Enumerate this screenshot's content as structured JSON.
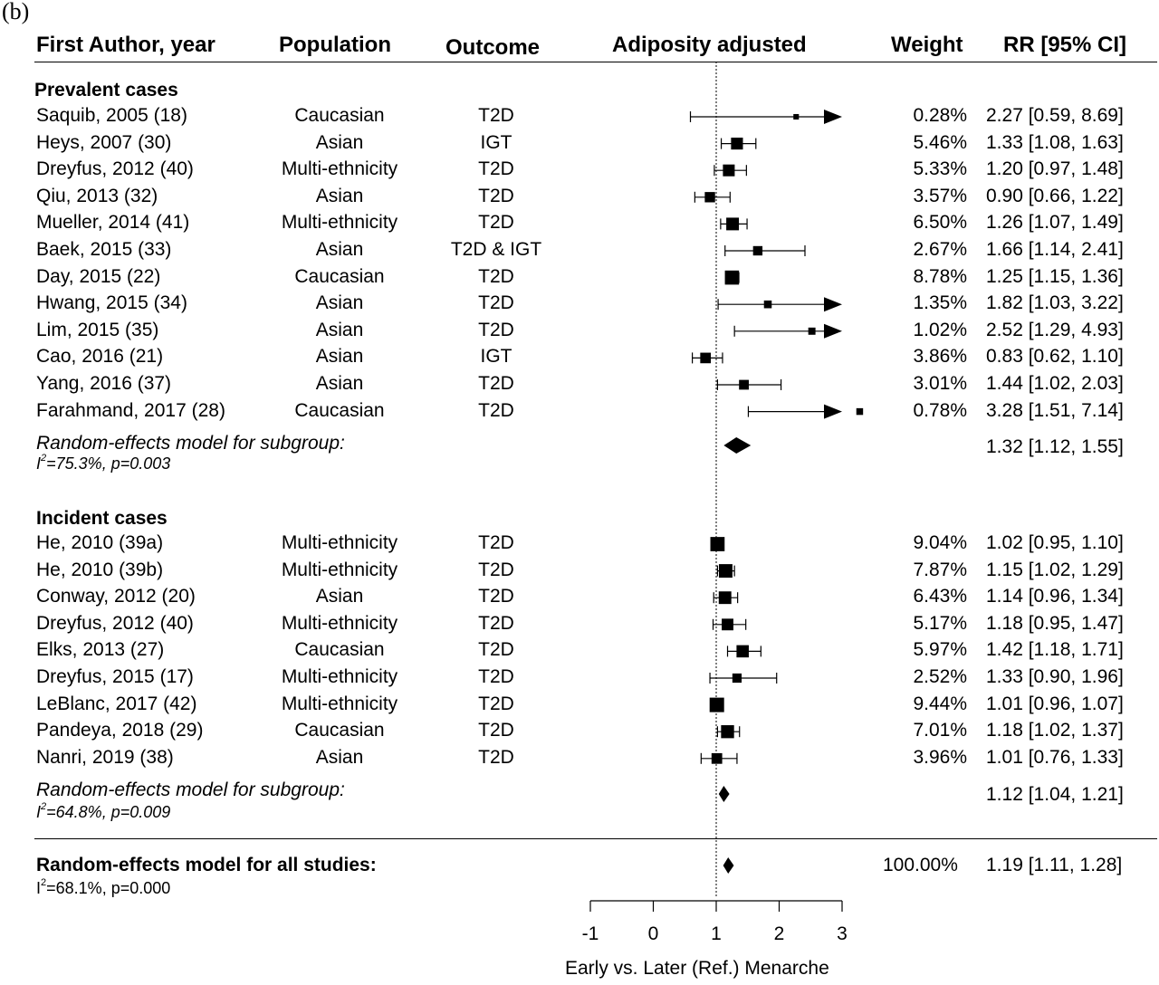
{
  "panel_label": "(b)",
  "headers": {
    "author": "First Author, year",
    "population": "Population",
    "outcome": "Outcome",
    "plot": "Adiposity adjusted",
    "weight": "Weight",
    "rr": "RR [95% CI]"
  },
  "groups": {
    "prevalent": {
      "label": "Prevalent cases",
      "summary_label": "Random-effects model for subgroup:",
      "het_I2": "I",
      "het_rest": "=75.3%, p=0.003",
      "summary_rr": "1.32 [1.12, 1.55]"
    },
    "incident": {
      "label": "Incident cases",
      "summary_label": "Random-effects model for subgroup:",
      "het_I2": "I",
      "het_rest": "=64.8%, p=0.009",
      "summary_rr": "1.12 [1.04, 1.21]"
    }
  },
  "overall": {
    "label": "Random-effects model for all studies:",
    "het_I2": "I",
    "het_rest": "=68.1%, p=0.000",
    "weight": "100.00%",
    "rr": "1.19 [1.11, 1.28]"
  },
  "axis": {
    "label": "Early vs. Later (Ref.) Menarche",
    "ticks": [
      "-1",
      "0",
      "1",
      "2",
      "3"
    ]
  },
  "chart_data": {
    "type": "forest",
    "xlabel": "Early vs. Later (Ref.) Menarche",
    "xlim": [
      -1,
      3
    ],
    "reference_line": 1,
    "studies": [
      {
        "group": "prevalent",
        "author": "Saquib, 2005 (18)",
        "population": "Caucasian",
        "outcome": "T2D",
        "weight": "0.28%",
        "rr_text": "2.27 [0.59, 8.69]",
        "rr": 2.27,
        "lo": 0.59,
        "hi": 8.69
      },
      {
        "group": "prevalent",
        "author": "Heys, 2007 (30)",
        "population": "Asian",
        "outcome": "IGT",
        "weight": "5.46%",
        "rr_text": "1.33 [1.08, 1.63]",
        "rr": 1.33,
        "lo": 1.08,
        "hi": 1.63
      },
      {
        "group": "prevalent",
        "author": "Dreyfus, 2012 (40)",
        "population": "Multi-ethnicity",
        "outcome": "T2D",
        "weight": "5.33%",
        "rr_text": "1.20 [0.97, 1.48]",
        "rr": 1.2,
        "lo": 0.97,
        "hi": 1.48
      },
      {
        "group": "prevalent",
        "author": "Qiu, 2013 (32)",
        "population": "Asian",
        "outcome": "T2D",
        "weight": "3.57%",
        "rr_text": "0.90 [0.66, 1.22]",
        "rr": 0.9,
        "lo": 0.66,
        "hi": 1.22
      },
      {
        "group": "prevalent",
        "author": "Mueller, 2014 (41)",
        "population": "Multi-ethnicity",
        "outcome": "T2D",
        "weight": "6.50%",
        "rr_text": "1.26 [1.07, 1.49]",
        "rr": 1.26,
        "lo": 1.07,
        "hi": 1.49
      },
      {
        "group": "prevalent",
        "author": "Baek, 2015 (33)",
        "population": "Asian",
        "outcome": "T2D & IGT",
        "weight": "2.67%",
        "rr_text": "1.66 [1.14, 2.41]",
        "rr": 1.66,
        "lo": 1.14,
        "hi": 2.41
      },
      {
        "group": "prevalent",
        "author": "Day, 2015 (22)",
        "population": "Caucasian",
        "outcome": "T2D",
        "weight": "8.78%",
        "rr_text": "1.25 [1.15, 1.36]",
        "rr": 1.25,
        "lo": 1.15,
        "hi": 1.36
      },
      {
        "group": "prevalent",
        "author": "Hwang, 2015 (34)",
        "population": "Asian",
        "outcome": "T2D",
        "weight": "1.35%",
        "rr_text": "1.82 [1.03, 3.22]",
        "rr": 1.82,
        "lo": 1.03,
        "hi": 3.22
      },
      {
        "group": "prevalent",
        "author": "Lim, 2015 (35)",
        "population": "Asian",
        "outcome": "T2D",
        "weight": "1.02%",
        "rr_text": "2.52 [1.29, 4.93]",
        "rr": 2.52,
        "lo": 1.29,
        "hi": 4.93
      },
      {
        "group": "prevalent",
        "author": "Cao, 2016 (21)",
        "population": "Asian",
        "outcome": "IGT",
        "weight": "3.86%",
        "rr_text": "0.83 [0.62, 1.10]",
        "rr": 0.83,
        "lo": 0.62,
        "hi": 1.1
      },
      {
        "group": "prevalent",
        "author": "Yang, 2016 (37)",
        "population": "Asian",
        "outcome": "T2D",
        "weight": "3.01%",
        "rr_text": "1.44 [1.02, 2.03]",
        "rr": 1.44,
        "lo": 1.02,
        "hi": 2.03
      },
      {
        "group": "prevalent",
        "author": "Farahmand, 2017 (28)",
        "population": "Caucasian",
        "outcome": "T2D",
        "weight": "0.78%",
        "rr_text": "3.28 [1.51, 7.14]",
        "rr": 3.28,
        "lo": 1.51,
        "hi": 7.14
      },
      {
        "group": "incident",
        "author": "He, 2010 (39a)",
        "population": "Multi-ethnicity",
        "outcome": "T2D",
        "weight": "9.04%",
        "rr_text": "1.02 [0.95, 1.10]",
        "rr": 1.02,
        "lo": 0.95,
        "hi": 1.1
      },
      {
        "group": "incident",
        "author": "He, 2010 (39b)",
        "population": "Multi-ethnicity",
        "outcome": "T2D",
        "weight": "7.87%",
        "rr_text": "1.15 [1.02, 1.29]",
        "rr": 1.15,
        "lo": 1.02,
        "hi": 1.29
      },
      {
        "group": "incident",
        "author": "Conway, 2012 (20)",
        "population": "Asian",
        "outcome": "T2D",
        "weight": "6.43%",
        "rr_text": "1.14 [0.96, 1.34]",
        "rr": 1.14,
        "lo": 0.96,
        "hi": 1.34
      },
      {
        "group": "incident",
        "author": "Dreyfus, 2012 (40)",
        "population": "Multi-ethnicity",
        "outcome": "T2D",
        "weight": "5.17%",
        "rr_text": "1.18 [0.95, 1.47]",
        "rr": 1.18,
        "lo": 0.95,
        "hi": 1.47
      },
      {
        "group": "incident",
        "author": "Elks, 2013 (27)",
        "population": "Caucasian",
        "outcome": "T2D",
        "weight": "5.97%",
        "rr_text": "1.42 [1.18, 1.71]",
        "rr": 1.42,
        "lo": 1.18,
        "hi": 1.71
      },
      {
        "group": "incident",
        "author": "Dreyfus, 2015 (17)",
        "population": "Multi-ethnicity",
        "outcome": "T2D",
        "weight": "2.52%",
        "rr_text": "1.33 [0.90, 1.96]",
        "rr": 1.33,
        "lo": 0.9,
        "hi": 1.96
      },
      {
        "group": "incident",
        "author": "LeBlanc, 2017 (42)",
        "population": "Multi-ethnicity",
        "outcome": "T2D",
        "weight": "9.44%",
        "rr_text": "1.01 [0.96, 1.07]",
        "rr": 1.01,
        "lo": 0.96,
        "hi": 1.07
      },
      {
        "group": "incident",
        "author": "Pandeya, 2018 (29)",
        "population": "Caucasian",
        "outcome": "T2D",
        "weight": "7.01%",
        "rr_text": "1.18 [1.02, 1.37]",
        "rr": 1.18,
        "lo": 1.02,
        "hi": 1.37
      },
      {
        "group": "incident",
        "author": "Nanri, 2019 (38)",
        "population": "Asian",
        "outcome": "T2D",
        "weight": "3.96%",
        "rr_text": "1.01 [0.76, 1.33]",
        "rr": 1.01,
        "lo": 0.76,
        "hi": 1.33
      }
    ],
    "summaries": [
      {
        "group": "prevalent",
        "rr": 1.32,
        "lo": 1.12,
        "hi": 1.55
      },
      {
        "group": "incident",
        "rr": 1.12,
        "lo": 1.04,
        "hi": 1.21
      },
      {
        "group": "overall",
        "rr": 1.19,
        "lo": 1.11,
        "hi": 1.28
      }
    ]
  }
}
